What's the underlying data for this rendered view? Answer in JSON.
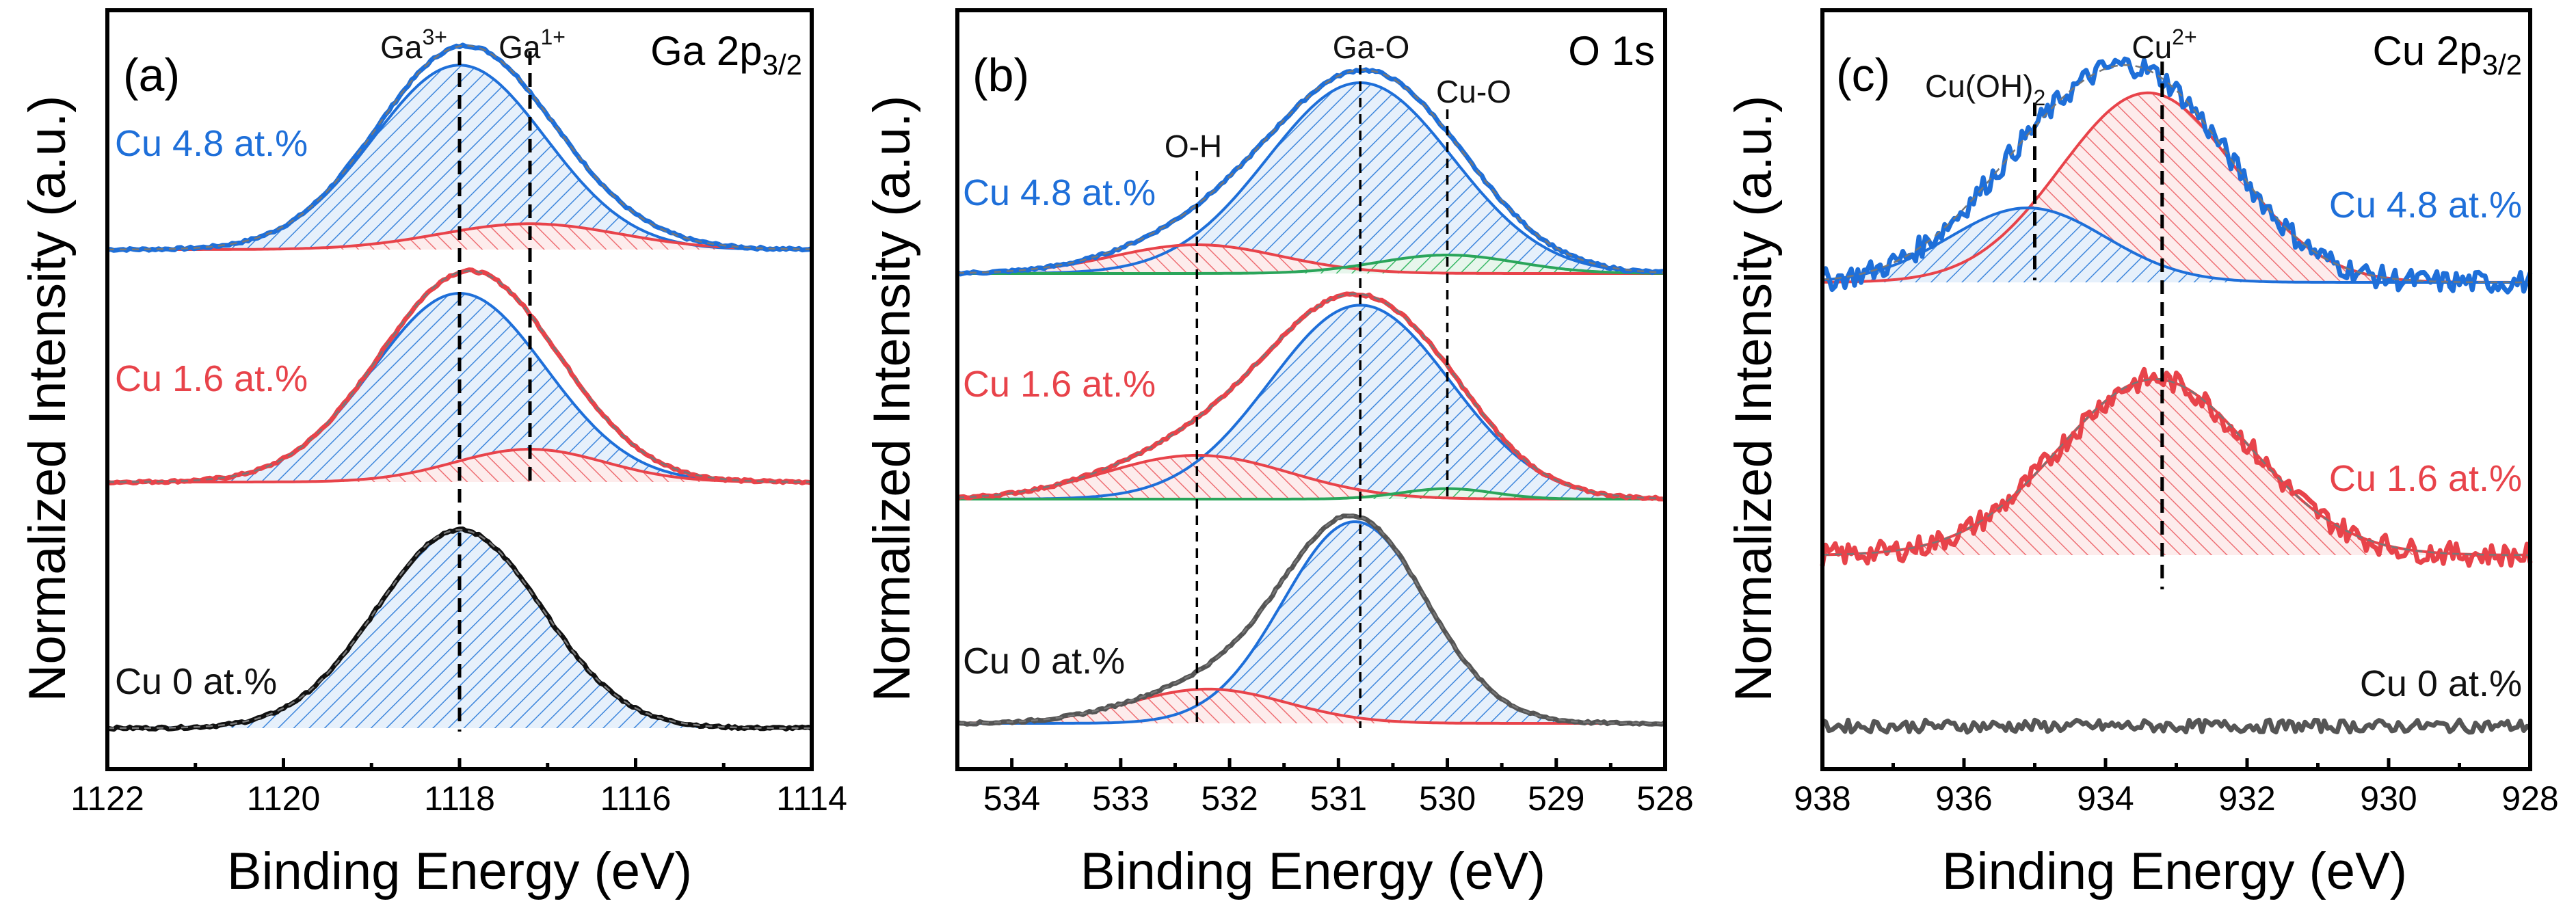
{
  "figure": {
    "ylabel": "Normalized Intensity (a.u.)",
    "xlabel": "Binding Energy (eV)"
  },
  "colors": {
    "blue": "#1e6fd9",
    "red": "#e8434a",
    "green": "#2aa55a",
    "gray": "#555555",
    "black": "#111111"
  },
  "chart_data": [
    {
      "type": "line",
      "panel": "(a)",
      "title": "Ga 2p3/2",
      "title_main": "Ga 2p",
      "title_sub": "3/2",
      "xlabel": "Binding Energy (eV)",
      "ylabel": "Normalized Intensity (a.u.)",
      "xlim": [
        1122,
        1114
      ],
      "xticks": [
        1122,
        1120,
        1118,
        1116,
        1114
      ],
      "xtick_labels": [
        "1122",
        "1120",
        "1118",
        "1116",
        "1114"
      ],
      "peaks": [
        {
          "name": "Ga3+",
          "label_main": "Ga",
          "label_sup": "3+",
          "center": 1118.0
        },
        {
          "name": "Ga1+",
          "label_main": "Ga",
          "label_sup": "1+",
          "center": 1117.2
        }
      ],
      "series": [
        {
          "name": "Cu 4.8 at.%",
          "color": "blue",
          "components": [
            {
              "name": "Ga3+",
              "center": 1118.0,
              "amplitude": 0.93,
              "fwhm": 2.3,
              "color": "blue"
            },
            {
              "name": "Ga1+",
              "center": 1117.2,
              "amplitude": 0.13,
              "fwhm": 2.4,
              "color": "red"
            }
          ]
        },
        {
          "name": "Cu 1.6 at.%",
          "color": "red",
          "components": [
            {
              "name": "Ga3+",
              "center": 1118.0,
              "amplitude": 0.92,
              "fwhm": 2.3,
              "color": "blue"
            },
            {
              "name": "Ga1+",
              "center": 1117.2,
              "amplitude": 0.16,
              "fwhm": 2.0,
              "color": "red"
            }
          ]
        },
        {
          "name": "Cu 0 at.%",
          "color": "black",
          "components": [
            {
              "name": "Ga3+",
              "center": 1118.0,
              "amplitude": 1.0,
              "fwhm": 2.2,
              "color": "blue"
            }
          ]
        }
      ]
    },
    {
      "type": "line",
      "panel": "(b)",
      "title": "O 1s",
      "xlabel": "Binding Energy (eV)",
      "ylabel": "Normalized Intensity (a.u.)",
      "xlim": [
        534.5,
        528
      ],
      "xticks": [
        534,
        533,
        532,
        531,
        530,
        529,
        528
      ],
      "xtick_labels": [
        "534",
        "533",
        "532",
        "531",
        "530",
        "529",
        "528"
      ],
      "peaks": [
        {
          "name": "O-H",
          "center": 532.3
        },
        {
          "name": "Ga-O",
          "center": 530.8
        },
        {
          "name": "Cu-O",
          "center": 530.0
        }
      ],
      "series": [
        {
          "name": "Cu 4.8 at.%",
          "color": "blue",
          "components": [
            {
              "name": "Ga-O",
              "center": 530.8,
              "amplitude": 0.93,
              "fwhm": 2.0,
              "color": "blue"
            },
            {
              "name": "O-H",
              "center": 532.3,
              "amplitude": 0.14,
              "fwhm": 1.8,
              "color": "red"
            },
            {
              "name": "Cu-O",
              "center": 530.0,
              "amplitude": 0.09,
              "fwhm": 1.5,
              "color": "green"
            }
          ]
        },
        {
          "name": "Cu 1.6 at.%",
          "color": "red",
          "components": [
            {
              "name": "Ga-O",
              "center": 530.8,
              "amplitude": 0.93,
              "fwhm": 1.95,
              "color": "blue"
            },
            {
              "name": "O-H",
              "center": 532.3,
              "amplitude": 0.21,
              "fwhm": 2.0,
              "color": "red"
            },
            {
              "name": "Cu-O",
              "center": 530.0,
              "amplitude": 0.05,
              "fwhm": 1.0,
              "color": "green"
            }
          ]
        },
        {
          "name": "Cu 0 at.%",
          "color": "gray",
          "components": [
            {
              "name": "Ga-O",
              "center": 530.85,
              "amplitude": 1.0,
              "fwhm": 1.55,
              "color": "blue"
            },
            {
              "name": "O-H",
              "center": 532.2,
              "amplitude": 0.17,
              "fwhm": 1.7,
              "color": "red"
            }
          ]
        }
      ]
    },
    {
      "type": "line",
      "panel": "(c)",
      "title": "Cu 2p3/2",
      "title_main": "Cu 2p",
      "title_sub": "3/2",
      "xlabel": "Binding Energy (eV)",
      "ylabel": "Normalized Intensity (a.u.)",
      "xlim": [
        938,
        928
      ],
      "xticks": [
        938,
        936,
        934,
        932,
        930,
        928
      ],
      "xtick_labels": [
        "938",
        "936",
        "934",
        "932",
        "930",
        "928"
      ],
      "peaks": [
        {
          "name": "Cu(OH)2",
          "label_main": "Cu(OH)",
          "label_sub": "2",
          "center": 935.0
        },
        {
          "name": "Cu2+",
          "label_main": "Cu",
          "label_sup": "2+",
          "center": 933.2
        }
      ],
      "series": [
        {
          "name": "Cu 4.8 at.%",
          "color": "blue",
          "components": [
            {
              "name": "Cu2+",
              "center": 933.4,
              "amplitude": 0.84,
              "fwhm": 2.9,
              "color": "red"
            },
            {
              "name": "Cu(OH)2",
              "center": 935.1,
              "amplitude": 0.33,
              "fwhm": 2.6,
              "color": "blue"
            }
          ]
        },
        {
          "name": "Cu 1.6 at.%",
          "color": "red",
          "components": [
            {
              "name": "Cu2+",
              "center": 933.3,
              "amplitude": 0.78,
              "fwhm": 3.2,
              "color": "red"
            }
          ]
        },
        {
          "name": "Cu 0 at.%",
          "color": "gray",
          "components": []
        }
      ]
    }
  ]
}
